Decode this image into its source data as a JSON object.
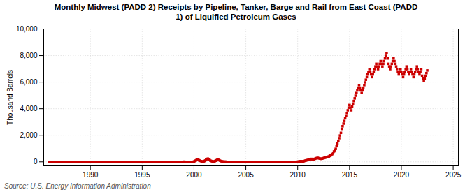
{
  "chart_data": {
    "type": "scatter",
    "title": "Monthly Midwest (PADD 2) Receipts by Pipeline, Tanker, Barge and Rail from East Coast (PADD\n1) of Liquified Petroleum Gases",
    "ylabel": "Thousand Barrels",
    "source": "Source: U.S. Energy Information Administration",
    "color": "#cc0000",
    "marker": "square",
    "grid": true,
    "xlim": [
      1985.5,
      2025.5
    ],
    "ylim": [
      -300,
      10000
    ],
    "xticks": [
      1990,
      1995,
      2000,
      2005,
      2010,
      2015,
      2020,
      2025
    ],
    "yticks": [
      0,
      {
        "value": 2000,
        "label": "2,000"
      },
      {
        "value": 4000,
        "label": "4,000"
      },
      {
        "value": 6000,
        "label": "6,000"
      },
      {
        "value": 8000,
        "label": "8,000"
      },
      {
        "value": 10000,
        "label": "10,000"
      }
    ],
    "x": [
      1986.0,
      1986.08,
      1986.17,
      1986.25,
      1986.33,
      1986.42,
      1986.5,
      1986.58,
      1986.67,
      1986.75,
      1986.83,
      1986.92,
      1987.0,
      1987.08,
      1987.17,
      1987.25,
      1987.33,
      1987.42,
      1987.5,
      1987.58,
      1987.67,
      1987.75,
      1987.83,
      1987.92,
      1988.0,
      1988.08,
      1988.17,
      1988.25,
      1988.33,
      1988.42,
      1988.5,
      1988.58,
      1988.67,
      1988.75,
      1988.83,
      1988.92,
      1989.0,
      1989.08,
      1989.17,
      1989.25,
      1989.33,
      1989.42,
      1989.5,
      1989.58,
      1989.67,
      1989.75,
      1989.83,
      1989.92,
      1990.0,
      1990.08,
      1990.17,
      1990.25,
      1990.33,
      1990.42,
      1990.5,
      1990.58,
      1990.67,
      1990.75,
      1990.83,
      1990.92,
      1991.0,
      1991.08,
      1991.17,
      1991.25,
      1991.33,
      1991.42,
      1991.5,
      1991.58,
      1991.67,
      1991.75,
      1991.83,
      1991.92,
      1992.0,
      1992.08,
      1992.17,
      1992.25,
      1992.33,
      1992.42,
      1992.5,
      1992.58,
      1992.67,
      1992.75,
      1992.83,
      1992.92,
      1993.0,
      1993.08,
      1993.17,
      1993.25,
      1993.33,
      1993.42,
      1993.5,
      1993.58,
      1993.67,
      1993.75,
      1993.83,
      1993.92,
      1994.0,
      1994.08,
      1994.17,
      1994.25,
      1994.33,
      1994.42,
      1994.5,
      1994.58,
      1994.67,
      1994.75,
      1994.83,
      1994.92,
      1995.0,
      1995.08,
      1995.17,
      1995.25,
      1995.33,
      1995.42,
      1995.5,
      1995.58,
      1995.67,
      1995.75,
      1995.83,
      1995.92,
      1996.0,
      1996.08,
      1996.17,
      1996.25,
      1996.33,
      1996.42,
      1996.5,
      1996.58,
      1996.67,
      1996.75,
      1996.83,
      1996.92,
      1997.0,
      1997.08,
      1997.17,
      1997.25,
      1997.33,
      1997.42,
      1997.5,
      1997.58,
      1997.67,
      1997.75,
      1997.83,
      1997.92,
      1998.0,
      1998.08,
      1998.17,
      1998.25,
      1998.33,
      1998.42,
      1998.5,
      1998.58,
      1998.67,
      1998.75,
      1998.83,
      1998.92,
      1999.0,
      1999.08,
      1999.17,
      1999.25,
      1999.33,
      1999.42,
      1999.5,
      1999.58,
      1999.67,
      1999.75,
      1999.83,
      1999.92,
      2000.0,
      2000.08,
      2000.17,
      2000.25,
      2000.33,
      2000.42,
      2000.5,
      2000.58,
      2000.67,
      2000.75,
      2000.83,
      2000.92,
      2001.0,
      2001.08,
      2001.17,
      2001.25,
      2001.33,
      2001.42,
      2001.5,
      2001.58,
      2001.67,
      2001.75,
      2001.83,
      2001.92,
      2002.0,
      2002.08,
      2002.17,
      2002.25,
      2002.33,
      2002.42,
      2002.5,
      2002.58,
      2002.67,
      2002.75,
      2002.83,
      2002.92,
      2003.0,
      2003.08,
      2003.17,
      2003.25,
      2003.33,
      2003.42,
      2003.5,
      2003.58,
      2003.67,
      2003.75,
      2003.83,
      2003.92,
      2004.0,
      2004.08,
      2004.17,
      2004.25,
      2004.33,
      2004.42,
      2004.5,
      2004.58,
      2004.67,
      2004.75,
      2004.83,
      2004.92,
      2005.0,
      2005.08,
      2005.17,
      2005.25,
      2005.33,
      2005.42,
      2005.5,
      2005.58,
      2005.67,
      2005.75,
      2005.83,
      2005.92,
      2006.0,
      2006.08,
      2006.17,
      2006.25,
      2006.33,
      2006.42,
      2006.5,
      2006.58,
      2006.67,
      2006.75,
      2006.83,
      2006.92,
      2007.0,
      2007.08,
      2007.17,
      2007.25,
      2007.33,
      2007.42,
      2007.5,
      2007.58,
      2007.67,
      2007.75,
      2007.83,
      2007.92,
      2008.0,
      2008.08,
      2008.17,
      2008.25,
      2008.33,
      2008.42,
      2008.5,
      2008.58,
      2008.67,
      2008.75,
      2008.83,
      2008.92,
      2009.0,
      2009.08,
      2009.17,
      2009.25,
      2009.33,
      2009.42,
      2009.5,
      2009.58,
      2009.67,
      2009.75,
      2009.83,
      2009.92,
      2010.0,
      2010.08,
      2010.17,
      2010.25,
      2010.33,
      2010.42,
      2010.5,
      2010.58,
      2010.67,
      2010.75,
      2010.83,
      2010.92,
      2011.0,
      2011.08,
      2011.17,
      2011.25,
      2011.33,
      2011.42,
      2011.5,
      2011.58,
      2011.67,
      2011.75,
      2011.83,
      2011.92,
      2012.0,
      2012.08,
      2012.17,
      2012.25,
      2012.33,
      2012.42,
      2012.5,
      2012.58,
      2012.67,
      2012.75,
      2012.83,
      2012.92,
      2013.0,
      2013.08,
      2013.17,
      2013.25,
      2013.33,
      2013.42,
      2013.5,
      2013.58,
      2013.67,
      2013.75,
      2013.83,
      2013.92,
      2014.0,
      2014.08,
      2014.17,
      2014.25,
      2014.33,
      2014.42,
      2014.5,
      2014.58,
      2014.67,
      2014.75,
      2014.83,
      2014.92,
      2015.0,
      2015.08,
      2015.17,
      2015.25,
      2015.33,
      2015.42,
      2015.5,
      2015.58,
      2015.67,
      2015.75,
      2015.83,
      2015.92,
      2016.0,
      2016.08,
      2016.17,
      2016.25,
      2016.33,
      2016.42,
      2016.5,
      2016.58,
      2016.67,
      2016.75,
      2016.83,
      2016.92,
      2017.0,
      2017.08,
      2017.17,
      2017.25,
      2017.33,
      2017.42,
      2017.5,
      2017.58,
      2017.67,
      2017.75,
      2017.83,
      2017.92,
      2018.0,
      2018.08,
      2018.17,
      2018.25,
      2018.33,
      2018.42,
      2018.5,
      2018.58,
      2018.67,
      2018.75,
      2018.83,
      2018.92,
      2019.0,
      2019.08,
      2019.17,
      2019.25,
      2019.33,
      2019.42,
      2019.5,
      2019.58,
      2019.67,
      2019.75,
      2019.83,
      2019.92,
      2020.0,
      2020.08,
      2020.17,
      2020.25,
      2020.33,
      2020.42,
      2020.5,
      2020.58,
      2020.67,
      2020.75,
      2020.83,
      2020.92,
      2021.0,
      2021.08,
      2021.17,
      2021.25,
      2021.33,
      2021.42,
      2021.5,
      2021.58,
      2021.67,
      2021.75,
      2021.83,
      2021.92,
      2022.0,
      2022.08,
      2022.17,
      2022.25,
      2022.33,
      2022.42,
      2022.5
    ],
    "values": [
      0,
      0,
      0,
      0,
      0,
      0,
      0,
      0,
      0,
      0,
      0,
      0,
      0,
      0,
      0,
      0,
      0,
      0,
      0,
      0,
      0,
      0,
      0,
      0,
      0,
      0,
      0,
      0,
      0,
      0,
      0,
      0,
      0,
      0,
      0,
      0,
      0,
      0,
      0,
      0,
      0,
      0,
      0,
      0,
      0,
      0,
      0,
      0,
      0,
      0,
      0,
      0,
      0,
      0,
      0,
      0,
      0,
      0,
      0,
      0,
      0,
      0,
      0,
      0,
      0,
      0,
      0,
      0,
      0,
      0,
      0,
      0,
      0,
      0,
      0,
      0,
      0,
      0,
      0,
      0,
      0,
      0,
      0,
      0,
      0,
      0,
      0,
      0,
      0,
      0,
      0,
      0,
      0,
      0,
      0,
      0,
      0,
      0,
      0,
      0,
      0,
      0,
      0,
      0,
      0,
      0,
      0,
      0,
      0,
      0,
      0,
      0,
      0,
      0,
      0,
      0,
      0,
      0,
      0,
      0,
      0,
      0,
      0,
      0,
      0,
      0,
      0,
      0,
      0,
      0,
      0,
      0,
      0,
      0,
      0,
      0,
      0,
      0,
      0,
      0,
      0,
      0,
      0,
      0,
      0,
      0,
      0,
      0,
      0,
      0,
      0,
      0,
      0,
      0,
      0,
      0,
      10,
      5,
      0,
      0,
      0,
      0,
      0,
      0,
      0,
      0,
      0,
      0,
      30,
      60,
      100,
      140,
      180,
      150,
      110,
      80,
      55,
      35,
      20,
      15,
      60,
      100,
      160,
      200,
      240,
      190,
      140,
      90,
      60,
      40,
      25,
      15,
      50,
      80,
      120,
      150,
      170,
      130,
      90,
      60,
      40,
      25,
      15,
      8,
      15,
      8,
      0,
      0,
      0,
      0,
      0,
      0,
      0,
      0,
      0,
      0,
      0,
      0,
      0,
      0,
      0,
      0,
      0,
      0,
      0,
      0,
      0,
      0,
      0,
      0,
      0,
      0,
      0,
      0,
      0,
      0,
      0,
      0,
      0,
      0,
      0,
      0,
      0,
      0,
      0,
      0,
      0,
      0,
      0,
      0,
      0,
      0,
      0,
      0,
      0,
      0,
      0,
      0,
      0,
      0,
      0,
      0,
      0,
      0,
      0,
      0,
      0,
      0,
      0,
      0,
      0,
      0,
      0,
      0,
      0,
      0,
      0,
      0,
      0,
      0,
      0,
      0,
      0,
      0,
      0,
      0,
      0,
      0,
      10,
      20,
      30,
      40,
      50,
      40,
      30,
      50,
      70,
      90,
      110,
      130,
      140,
      160,
      180,
      200,
      220,
      200,
      180,
      200,
      230,
      260,
      280,
      300,
      280,
      260,
      240,
      220,
      240,
      260,
      280,
      300,
      320,
      340,
      360,
      380,
      400,
      440,
      480,
      530,
      580,
      680,
      780,
      880,
      980,
      1180,
      1380,
      1580,
      1780,
      1980,
      2180,
      2480,
      2680,
      2880,
      3080,
      3280,
      3480,
      3680,
      3880,
      4080,
      4280,
      4080,
      3880,
      4180,
      4380,
      4580,
      4780,
      4980,
      5180,
      5380,
      5580,
      5780,
      5580,
      5380,
      5180,
      5380,
      5580,
      5780,
      5980,
      6180,
      6380,
      6580,
      6780,
      6980,
      6780,
      6580,
      6380,
      6580,
      6780,
      6980,
      7180,
      7380,
      7180,
      6980,
      7180,
      7380,
      7580,
      7380,
      7180,
      7380,
      7580,
      7780,
      7980,
      8200,
      7780,
      7380,
      7180,
      6980,
      7180,
      7380,
      7580,
      7780,
      7580,
      7380,
      7180,
      6980,
      6780,
      6580,
      6780,
      6980,
      6780,
      6580,
      6380,
      6580,
      6780,
      6980,
      7180,
      6980,
      6780,
      6580,
      6780,
      6980,
      6780,
      6580,
      6380,
      6580,
      6780,
      6980,
      7180,
      6980,
      6780,
      6580,
      6780,
      6980,
      6480,
      6280,
      6080,
      6280,
      6480,
      6680,
      6880
    ]
  }
}
